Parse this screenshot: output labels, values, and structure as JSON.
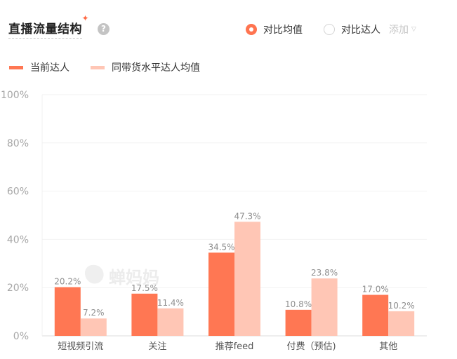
{
  "header": {
    "title": "直播流量结构",
    "help_icon": "question-circle-icon"
  },
  "controls": {
    "radio_options": [
      {
        "label": "对比均值",
        "selected": true
      },
      {
        "label": "对比达人",
        "selected": false
      }
    ],
    "add_label": "添加"
  },
  "watermark": "蝉妈妈",
  "colors": {
    "current": "#ff7753",
    "average": "#ffc6b5",
    "accent": "#ff6a45"
  },
  "chart_data": {
    "type": "bar",
    "categories": [
      "短视频引流",
      "关注",
      "推荐feed",
      "付费（预估)",
      "其他"
    ],
    "series": [
      {
        "name": "当前达人",
        "values": [
          20.2,
          17.5,
          34.5,
          10.8,
          17.0
        ],
        "labels": [
          "20.2%",
          "17.5%",
          "34.5%",
          "10.8%",
          "17.0%"
        ]
      },
      {
        "name": "同带货水平达人均值",
        "values": [
          7.2,
          11.4,
          47.3,
          23.8,
          10.2
        ],
        "labels": [
          "7.2%",
          "11.4%",
          "47.3%",
          "23.8%",
          "10.2%"
        ]
      }
    ],
    "yticks": [
      "0%",
      "20%",
      "40%",
      "60%",
      "80%",
      "100%"
    ],
    "ylim": [
      0,
      100
    ],
    "grid": true,
    "legend": "top-left"
  }
}
